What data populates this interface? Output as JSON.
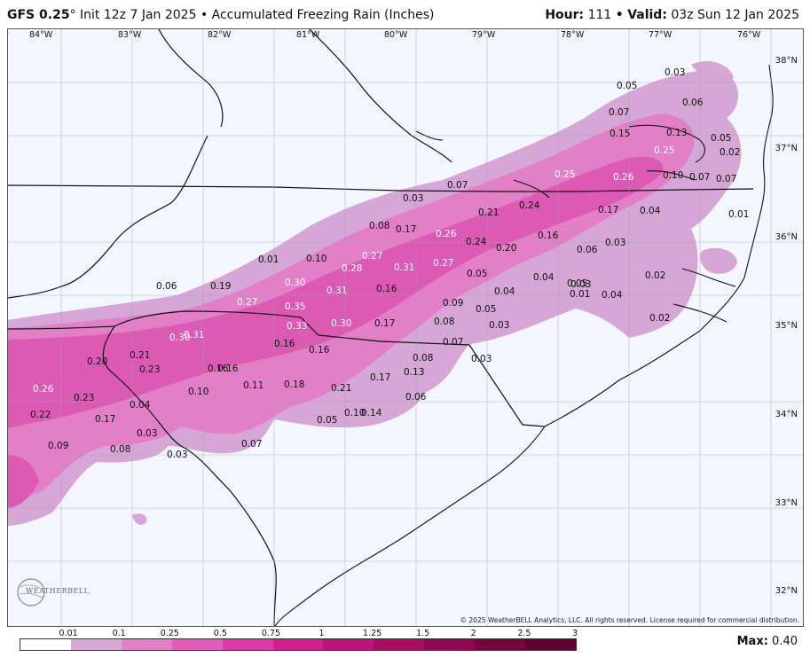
{
  "header": {
    "model": "GFS 0.25",
    "degree": "°",
    "init": "Init 12z 7 Jan 2025",
    "separator": "•",
    "product": "Accumulated Freezing Rain (Inches)",
    "hour_label": "Hour:",
    "hour_value": "111",
    "valid_label": "Valid:",
    "valid_value": "03z Sun 12 Jan 2025"
  },
  "longitudes": [
    "84°W",
    "83°W",
    "82°W",
    "81°W",
    "80°W",
    "79°W",
    "78°W",
    "77°W",
    "76°W"
  ],
  "latitudes": [
    "38°N",
    "37°N",
    "36°N",
    "35°N",
    "34°N",
    "33°N",
    "32°N"
  ],
  "colorbar": {
    "ticks": [
      "0.01",
      "0.1",
      "0.25",
      "0.5",
      "0.75",
      "1",
      "1.25",
      "1.5",
      "2",
      "2.5",
      "3"
    ],
    "colors": [
      "#ffffff",
      "#d8a8d8",
      "#e080c8",
      "#e05cb8",
      "#dc3aa6",
      "#d0208e",
      "#bc1478",
      "#a80c64",
      "#900852",
      "#780440",
      "#600230"
    ]
  },
  "max_label": "Max:",
  "max_value": "0.40",
  "copyright": "© 2025 WeatherBELL Analytics, LLC. All rights reserved. License required for commercial distribution.",
  "logo_text": "WEATHERBELL",
  "values": [
    {
      "t": "0.03",
      "c": "d"
    },
    {
      "t": "0.05",
      "c": "d"
    },
    {
      "t": "0.06",
      "c": "d"
    },
    {
      "t": "0.07",
      "c": "d"
    },
    {
      "t": "0.15",
      "c": "d"
    },
    {
      "t": "0.13",
      "c": "d"
    },
    {
      "t": "0.05",
      "c": "d"
    },
    {
      "t": "0.02",
      "c": "d"
    },
    {
      "t": "0.25",
      "c": "w"
    },
    {
      "t": "0.25",
      "c": "w"
    },
    {
      "t": "0.26",
      "c": "w"
    },
    {
      "t": "0.10",
      "c": "d"
    },
    {
      "t": "0.07",
      "c": "d"
    },
    {
      "t": "0.07",
      "c": "d"
    },
    {
      "t": "0.07",
      "c": "d"
    },
    {
      "t": "0.03",
      "c": "d"
    },
    {
      "t": "0.24",
      "c": "d"
    },
    {
      "t": "0.21",
      "c": "d"
    },
    {
      "t": "0.17",
      "c": "d"
    },
    {
      "t": "0.04",
      "c": "d"
    },
    {
      "t": "0.01",
      "c": "d"
    },
    {
      "t": "0.08",
      "c": "d"
    },
    {
      "t": "0.17",
      "c": "d"
    },
    {
      "t": "0.26",
      "c": "w"
    },
    {
      "t": "0.24",
      "c": "d"
    },
    {
      "t": "0.20",
      "c": "d"
    },
    {
      "t": "0.16",
      "c": "d"
    },
    {
      "t": "0.03",
      "c": "d"
    },
    {
      "t": "0.06",
      "c": "d"
    },
    {
      "t": "0.01",
      "c": "d"
    },
    {
      "t": "0.10",
      "c": "d"
    },
    {
      "t": "0.27",
      "c": "w"
    },
    {
      "t": "0.28",
      "c": "w"
    },
    {
      "t": "0.31",
      "c": "w"
    },
    {
      "t": "0.27",
      "c": "w"
    },
    {
      "t": "0.04",
      "c": "d"
    },
    {
      "t": "0.05",
      "c": "d"
    },
    {
      "t": "0.02",
      "c": "d"
    },
    {
      "t": "0.06",
      "c": "d"
    },
    {
      "t": "0.19",
      "c": "d"
    },
    {
      "t": "0.30",
      "c": "w"
    },
    {
      "t": "0.31",
      "c": "w"
    },
    {
      "t": "0.16",
      "c": "d"
    },
    {
      "t": "0.05",
      "c": "d"
    },
    {
      "t": "0.04",
      "c": "d"
    },
    {
      "t": "0.03",
      "c": "d"
    },
    {
      "t": "0.01",
      "c": "d"
    },
    {
      "t": "0.04",
      "c": "d"
    },
    {
      "t": "0.27",
      "c": "w"
    },
    {
      "t": "0.35",
      "c": "w"
    },
    {
      "t": "0.09",
      "c": "d"
    },
    {
      "t": "0.05",
      "c": "d"
    },
    {
      "t": "0.02",
      "c": "d"
    },
    {
      "t": "0.16",
      "c": "d"
    },
    {
      "t": "0.33",
      "c": "w"
    },
    {
      "t": "0.30",
      "c": "w"
    },
    {
      "t": "0.17",
      "c": "d"
    },
    {
      "t": "0.08",
      "c": "d"
    },
    {
      "t": "0.03",
      "c": "d"
    },
    {
      "t": "0.30",
      "c": "w"
    },
    {
      "t": "0.31",
      "c": "w"
    },
    {
      "t": "0.07",
      "c": "d"
    },
    {
      "t": "0.20",
      "c": "d"
    },
    {
      "t": "0.21",
      "c": "d"
    },
    {
      "t": "0.16",
      "c": "d"
    },
    {
      "t": "0.16",
      "c": "d"
    },
    {
      "t": "0.08",
      "c": "d"
    },
    {
      "t": "0.03",
      "c": "d"
    },
    {
      "t": "0.23",
      "c": "d"
    },
    {
      "t": "0.16",
      "c": "d"
    },
    {
      "t": "0.17",
      "c": "d"
    },
    {
      "t": "0.13",
      "c": "d"
    },
    {
      "t": "0.26",
      "c": "w"
    },
    {
      "t": "0.11",
      "c": "d"
    },
    {
      "t": "0.18",
      "c": "d"
    },
    {
      "t": "0.21",
      "c": "d"
    },
    {
      "t": "0.10",
      "c": "d"
    },
    {
      "t": "0.06",
      "c": "d"
    },
    {
      "t": "0.23",
      "c": "d"
    },
    {
      "t": "0.04",
      "c": "d"
    },
    {
      "t": "0.22",
      "c": "d"
    },
    {
      "t": "0.17",
      "c": "d"
    },
    {
      "t": "0.05",
      "c": "d"
    },
    {
      "t": "0.10",
      "c": "d"
    },
    {
      "t": "0.14",
      "c": "d"
    },
    {
      "t": "0.03",
      "c": "d"
    },
    {
      "t": "0.09",
      "c": "d"
    },
    {
      "t": "0.08",
      "c": "d"
    },
    {
      "t": "0.07",
      "c": "d"
    },
    {
      "t": "0.03",
      "c": "d"
    }
  ]
}
